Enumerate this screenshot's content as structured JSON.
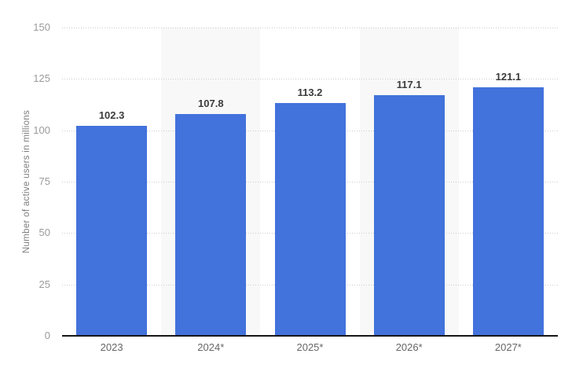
{
  "chart_data": {
    "type": "bar",
    "title": "",
    "categories": [
      "2023",
      "2024*",
      "2025*",
      "2026*",
      "2027*"
    ],
    "values": [
      102.3,
      107.8,
      113.2,
      117.1,
      121.1
    ],
    "value_labels": [
      "102.3",
      "107.8",
      "113.2",
      "117.1",
      "121.1"
    ],
    "xlabel": "",
    "ylabel": "Number of active users in millions",
    "ylim": [
      0,
      150
    ],
    "yticks": [
      0,
      25,
      50,
      75,
      100,
      125,
      150
    ],
    "grid": "horizontal-dotted",
    "legend": "none",
    "plot_bands_on_columns": [
      1,
      3
    ],
    "colors": {
      "bar": "#4272db",
      "value_label": "#3b3b3b",
      "tick_label": "#9b9b9b",
      "x_label": "#666666",
      "axis_line": "#161616",
      "gridline": "#cccccc",
      "plot_band": "#f8f8f8",
      "background": "#ffffff"
    }
  }
}
